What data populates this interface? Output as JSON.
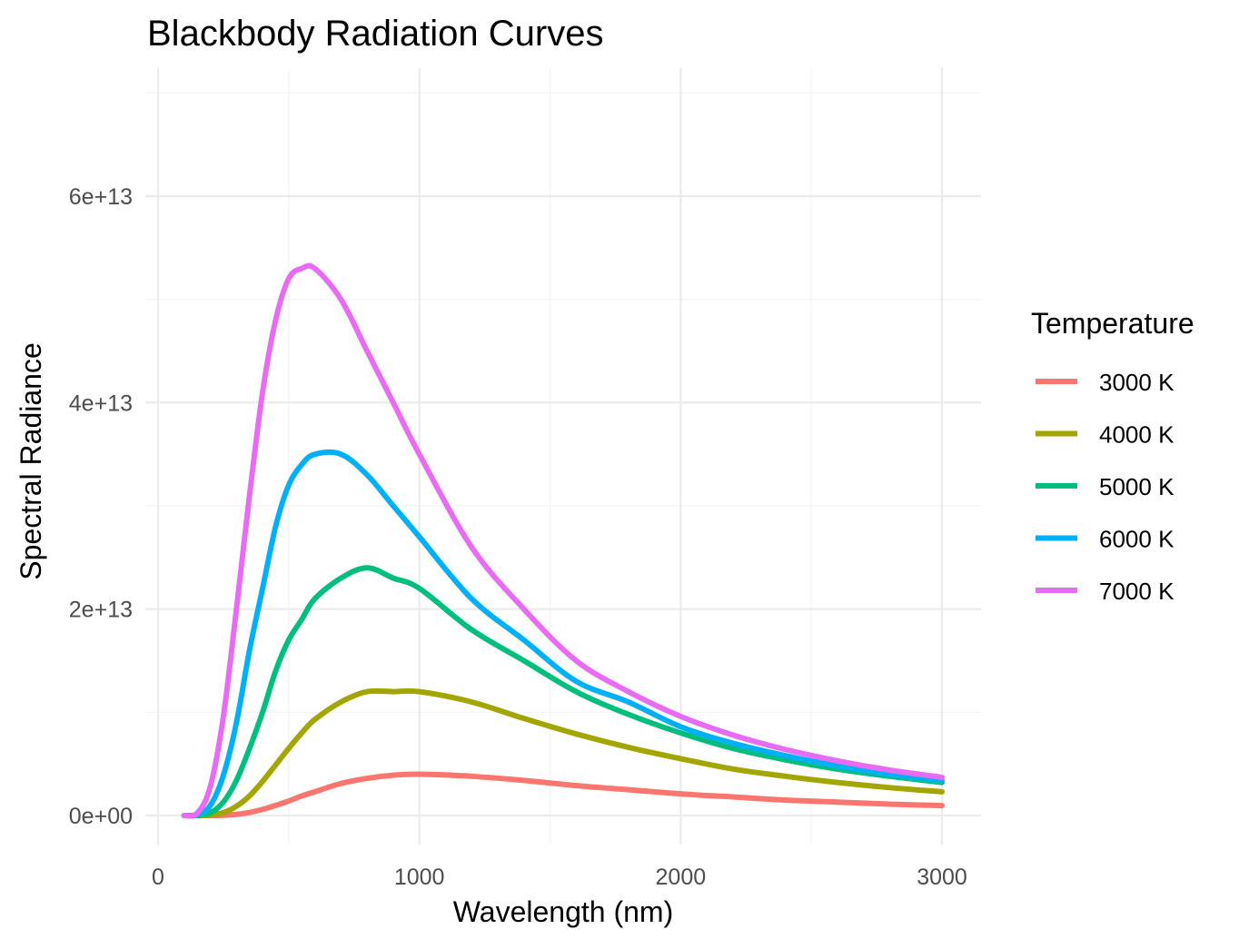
{
  "chart_data": {
    "type": "line",
    "title": "Blackbody Radiation Curves",
    "xlabel": "Wavelength (nm)",
    "ylabel": "Spectral Radiance",
    "xlim": [
      0,
      3000
    ],
    "ylim": [
      -2500000000000,
      69000000000000
    ],
    "x_ticks": [
      0,
      1000,
      2000,
      3000
    ],
    "x_tick_labels": [
      "0",
      "1000",
      "2000",
      "3000"
    ],
    "y_ticks": [
      0,
      20000000000000,
      40000000000000,
      60000000000000
    ],
    "y_tick_labels": [
      "0e+00",
      "2e+13",
      "4e+13",
      "6e+13"
    ],
    "grid": true,
    "legend": {
      "title": "Temperature",
      "position": "right"
    },
    "x": [
      100,
      150,
      200,
      250,
      300,
      350,
      400,
      450,
      500,
      550,
      600,
      700,
      800,
      900,
      1000,
      1200,
      1400,
      1600,
      1800,
      2000,
      2200,
      2400,
      2600,
      2800,
      3000
    ],
    "series": [
      {
        "name": "3000 K",
        "color": "#F8766D",
        "values": [
          0,
          30000000.0,
          2300000000.0,
          24000000000.0,
          110000000000.0,
          290000000000.0,
          590000000000.0,
          980000000000.0,
          1400000000000.0,
          1900000000000.0,
          2300000000000.0,
          3100000000000.0,
          3600000000000.0,
          3900000000000.0,
          4000000000000.0,
          3800000000000.0,
          3400000000000.0,
          2900000000000.0,
          2500000000000.0,
          2100000000000.0,
          1800000000000.0,
          1500000000000.0,
          1300000000000.0,
          1100000000000.0,
          960000000000.0
        ]
      },
      {
        "name": "4000 K",
        "color": "#A3A500",
        "values": [
          0,
          1300000000.0,
          42000000000.0,
          280000000000.0,
          900000000000.0,
          1900000000000.0,
          3300000000000.0,
          4900000000000.0,
          6500000000000.0,
          8000000000000.0,
          9300000000000.0,
          11000000000000.0,
          12000000000000.0,
          12000000000000.0,
          12000000000000.0,
          11000000000000.0,
          9400000000000.0,
          7900000000000.0,
          6600000000000.0,
          5500000000000.0,
          4500000000000.0,
          3800000000000.0,
          3200000000000.0,
          2700000000000.0,
          2300000000000.0
        ]
      },
      {
        "name": "5000 K",
        "color": "#00BF7D",
        "values": [
          0,
          13000000000.0,
          260000000000.0,
          1300000000000.0,
          3400000000000.0,
          6500000000000.0,
          10000000000000.0,
          14000000000000.0,
          17000000000000.0,
          19000000000000.0,
          21000000000000.0,
          23000000000000.0,
          24000000000000.0,
          23000000000000.0,
          22000000000000.0,
          18000000000000.0,
          15000000000000.0,
          12000000000000.0,
          9800000000000.0,
          8000000000000.0,
          6500000000000.0,
          5400000000000.0,
          4500000000000.0,
          3800000000000.0,
          3200000000000.0
        ]
      },
      {
        "name": "6000 K",
        "color": "#00B0F6",
        "values": [
          0,
          65000000000.0,
          980000000000.0,
          3900000000000.0,
          9000000000000.0,
          16000000000000.0,
          22000000000000.0,
          28000000000000.0,
          32000000000000.0,
          34000000000000.0,
          35000000000000.0,
          35000000000000.0,
          33000000000000.0,
          30000000000000.0,
          27000000000000.0,
          21000000000000.0,
          17000000000000.0,
          13000000000000.0,
          11000000000000.0,
          8600000000000.0,
          7000000000000.0,
          5800000000000.0,
          4800000000000.0,
          4000000000000.0,
          3400000000000.0
        ]
      },
      {
        "name": "7000 K",
        "color": "#E76BF3",
        "values": [
          0,
          230000000000.0,
          2800000000000.0,
          9600000000000.0,
          20000000000000.0,
          31000000000000.0,
          41000000000000.0,
          48000000000000.0,
          52000000000000.0,
          53000000000000.0,
          53000000000000.0,
          50000000000000.0,
          45000000000000.0,
          40000000000000.0,
          35000000000000.0,
          26000000000000.0,
          20000000000000.0,
          15000000000000.0,
          12000000000000.0,
          9600000000000.0,
          7800000000000.0,
          6400000000000.0,
          5300000000000.0,
          4400000000000.0,
          3700000000000.0
        ]
      }
    ]
  }
}
